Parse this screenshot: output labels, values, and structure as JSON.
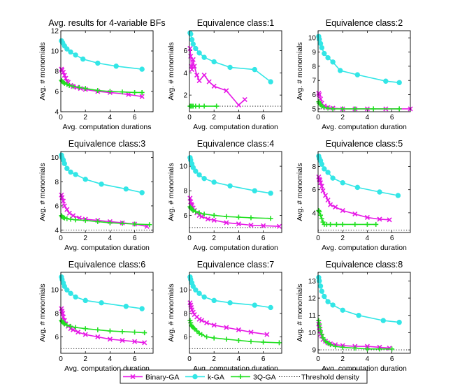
{
  "legend": {
    "entries": [
      {
        "label": "Binary-GA",
        "color": "#e619e6",
        "marker": "x"
      },
      {
        "label": "k-GA",
        "color": "#33e6e6",
        "marker": "o"
      },
      {
        "label": "3Q-GA",
        "color": "#22e022",
        "marker": "+"
      },
      {
        "label": "Threshold density",
        "color": "#000000",
        "marker": "dotted"
      }
    ]
  },
  "chart_data": [
    {
      "type": "line",
      "title": "Avg. results for 4-variable BFs",
      "xlabel": "Avg. computation durations",
      "ylabel": "Avg. # monomials",
      "xlim": [
        0,
        7.5
      ],
      "ylim": [
        4,
        12
      ],
      "xticks": [
        0,
        2,
        4,
        6
      ],
      "yticks": [
        4,
        6,
        8,
        10,
        12
      ],
      "threshold": null,
      "series": [
        {
          "name": "Binary-GA",
          "x": [
            0.05,
            0.1,
            0.2,
            0.3,
            0.4,
            0.5,
            0.6,
            0.8,
            1.0,
            1.3,
            1.6,
            2.0,
            3.0,
            4.0,
            5.5,
            6.6
          ],
          "y": [
            8.2,
            8.1,
            7.9,
            7.6,
            7.3,
            7.0,
            6.9,
            6.6,
            6.5,
            6.4,
            6.3,
            6.2,
            6.0,
            5.9,
            5.7,
            5.5
          ]
        },
        {
          "name": "k-GA",
          "x": [
            0.05,
            0.15,
            0.3,
            0.5,
            0.8,
            1.2,
            1.8,
            3.0,
            4.5,
            6.6
          ],
          "y": [
            11.0,
            10.8,
            10.5,
            10.2,
            9.9,
            9.6,
            9.2,
            8.8,
            8.5,
            8.2
          ]
        },
        {
          "name": "3Q-GA",
          "x": [
            0.05,
            0.1,
            0.2,
            0.3,
            0.5,
            0.7,
            1.0,
            1.5,
            2.0,
            3.0,
            4.0,
            5.0,
            6.0,
            6.6
          ],
          "y": [
            7.1,
            7.0,
            6.9,
            6.8,
            6.7,
            6.6,
            6.5,
            6.4,
            6.3,
            6.1,
            6.0,
            5.95,
            5.9,
            5.9
          ]
        }
      ]
    },
    {
      "type": "line",
      "title": "Equivalence class:1",
      "xlabel": "Avg. computation duration",
      "ylabel": "Avg. # monomials",
      "xlim": [
        0,
        7.5
      ],
      "ylim": [
        0.5,
        7.8
      ],
      "xticks": [
        0,
        2,
        4,
        6
      ],
      "yticks": [
        2,
        4,
        6
      ],
      "threshold": 1,
      "series": [
        {
          "name": "Binary-GA",
          "x": [
            0.05,
            0.1,
            0.15,
            0.2,
            0.3,
            0.4,
            0.6,
            0.8,
            1.2,
            1.6,
            2.0,
            3.0,
            4.0,
            4.5
          ],
          "y": [
            6.2,
            5.5,
            4.6,
            4.3,
            5.2,
            4.6,
            3.8,
            3.3,
            3.8,
            3.2,
            2.8,
            2.4,
            1.1,
            1.6
          ]
        },
        {
          "name": "k-GA",
          "x": [
            0.05,
            0.1,
            0.2,
            0.3,
            0.5,
            0.8,
            1.2,
            2.0,
            3.3,
            5.3,
            6.6
          ],
          "y": [
            7.6,
            7.5,
            7.0,
            6.6,
            6.2,
            5.8,
            5.4,
            5.0,
            4.5,
            4.3,
            3.2
          ]
        },
        {
          "name": "3Q-GA",
          "x": [
            0.05,
            0.1,
            0.2,
            0.3,
            0.5,
            0.8,
            1.2,
            2.2
          ],
          "y": [
            1.0,
            1.0,
            1.0,
            1.0,
            1.0,
            1.0,
            1.0,
            1.0
          ]
        }
      ]
    },
    {
      "type": "line",
      "title": "Equivalence class:2",
      "xlabel": "Avg. computation duration",
      "ylabel": "Avg. # monomials",
      "xlim": [
        0,
        7.5
      ],
      "ylim": [
        4.8,
        10.5
      ],
      "xticks": [
        0,
        2,
        4,
        6
      ],
      "yticks": [
        5,
        6,
        7,
        8,
        9,
        10
      ],
      "threshold": 5,
      "series": [
        {
          "name": "Binary-GA",
          "x": [
            0.05,
            0.1,
            0.2,
            0.3,
            0.5,
            0.8,
            1.2,
            2.0,
            3.0,
            4.0,
            5.5,
            7.5
          ],
          "y": [
            6.1,
            6.0,
            5.7,
            5.4,
            5.2,
            5.1,
            5.05,
            5.0,
            5.0,
            5.0,
            5.0,
            5.0
          ]
        },
        {
          "name": "k-GA",
          "x": [
            0.05,
            0.1,
            0.2,
            0.3,
            0.5,
            0.8,
            1.2,
            1.8,
            3.2,
            5.5,
            6.6
          ],
          "y": [
            10.1,
            9.9,
            9.6,
            9.3,
            8.9,
            8.6,
            8.3,
            7.7,
            7.4,
            6.95,
            6.85
          ]
        },
        {
          "name": "3Q-GA",
          "x": [
            0.05,
            0.1,
            0.2,
            0.3,
            0.5,
            0.8,
            1.2,
            2.0,
            3.0,
            4.5,
            6.6
          ],
          "y": [
            5.5,
            5.4,
            5.3,
            5.2,
            5.1,
            5.05,
            5.0,
            5.0,
            5.0,
            5.0,
            5.0
          ]
        }
      ]
    },
    {
      "type": "line",
      "title": "Equivalence class:3",
      "xlabel": "Avg. computation duration",
      "ylabel": "Avg. # monomials",
      "xlim": [
        0,
        7.5
      ],
      "ylim": [
        3.8,
        10.5
      ],
      "xticks": [
        0,
        2,
        4,
        6
      ],
      "yticks": [
        4,
        6,
        8,
        10
      ],
      "threshold": 4,
      "series": [
        {
          "name": "Binary-GA",
          "x": [
            0.05,
            0.1,
            0.2,
            0.3,
            0.5,
            0.7,
            1.0,
            1.5,
            2.0,
            3.0,
            4.0,
            5.0,
            6.0,
            7.0
          ],
          "y": [
            6.9,
            6.7,
            6.4,
            6.0,
            5.7,
            5.4,
            5.2,
            5.0,
            4.9,
            4.8,
            4.7,
            4.6,
            4.5,
            4.3
          ]
        },
        {
          "name": "k-GA",
          "x": [
            0.05,
            0.1,
            0.2,
            0.3,
            0.5,
            0.8,
            1.2,
            2.0,
            3.3,
            5.3,
            6.6
          ],
          "y": [
            10.2,
            10.0,
            9.8,
            9.5,
            9.1,
            8.8,
            8.6,
            8.2,
            7.8,
            7.4,
            7.1
          ]
        },
        {
          "name": "3Q-GA",
          "x": [
            0.05,
            0.1,
            0.2,
            0.3,
            0.5,
            0.8,
            1.2,
            2.0,
            3.0,
            4.0,
            5.0,
            6.0,
            7.2
          ],
          "y": [
            5.2,
            5.1,
            5.05,
            5.0,
            4.95,
            4.9,
            4.85,
            4.8,
            4.7,
            4.6,
            4.55,
            4.5,
            4.45
          ]
        }
      ]
    },
    {
      "type": "line",
      "title": "Equivalence class:4",
      "xlabel": "Avg. computation duration",
      "ylabel": "Avg. # monomials",
      "xlim": [
        0,
        7.5
      ],
      "ylim": [
        4.6,
        11.2
      ],
      "xticks": [
        0,
        2,
        4,
        6
      ],
      "yticks": [
        6,
        8,
        10
      ],
      "threshold": 5,
      "series": [
        {
          "name": "Binary-GA",
          "x": [
            0.05,
            0.1,
            0.15,
            0.2,
            0.3,
            0.4,
            0.6,
            0.8,
            1.0,
            1.5,
            2.0,
            3.0,
            4.0,
            5.0,
            6.0,
            7.3
          ],
          "y": [
            7.4,
            7.1,
            6.9,
            6.8,
            6.6,
            6.4,
            6.2,
            6.0,
            5.9,
            5.7,
            5.6,
            5.4,
            5.3,
            5.2,
            5.15,
            5.1
          ]
        },
        {
          "name": "k-GA",
          "x": [
            0.05,
            0.1,
            0.2,
            0.3,
            0.5,
            0.8,
            1.2,
            2.0,
            3.3,
            5.3,
            6.6
          ],
          "y": [
            10.7,
            10.5,
            10.2,
            9.9,
            9.6,
            9.3,
            9.0,
            8.7,
            8.4,
            8.0,
            7.8
          ]
        },
        {
          "name": "3Q-GA",
          "x": [
            0.05,
            0.1,
            0.2,
            0.3,
            0.5,
            0.8,
            1.2,
            2.0,
            3.0,
            4.0,
            5.0,
            6.6
          ],
          "y": [
            6.7,
            6.6,
            6.5,
            6.4,
            6.3,
            6.2,
            6.1,
            6.0,
            5.9,
            5.85,
            5.8,
            5.75
          ]
        }
      ]
    },
    {
      "type": "line",
      "title": "Equivalence class:5",
      "xlabel": "Avg. computation duration",
      "ylabel": "Avg. # monomials",
      "xlim": [
        0,
        7.5
      ],
      "ylim": [
        2.3,
        9.3
      ],
      "xticks": [
        0,
        2,
        4,
        6
      ],
      "yticks": [
        4,
        6,
        8
      ],
      "threshold": 2.5,
      "series": [
        {
          "name": "Binary-GA",
          "x": [
            0.05,
            0.1,
            0.15,
            0.2,
            0.3,
            0.4,
            0.6,
            0.8,
            1.0,
            1.4,
            2.0,
            3.0,
            4.0,
            5.0,
            5.8
          ],
          "y": [
            7.1,
            6.9,
            6.8,
            6.6,
            6.3,
            5.9,
            5.5,
            5.1,
            4.7,
            4.5,
            4.2,
            3.9,
            3.6,
            3.45,
            3.4
          ]
        },
        {
          "name": "k-GA",
          "x": [
            0.05,
            0.1,
            0.2,
            0.3,
            0.5,
            0.8,
            1.2,
            2.0,
            3.2,
            5.0,
            6.5
          ],
          "y": [
            8.9,
            8.7,
            8.5,
            8.2,
            7.8,
            7.5,
            7.0,
            6.6,
            6.2,
            5.8,
            5.5
          ]
        },
        {
          "name": "3Q-GA",
          "x": [
            0.05,
            0.1,
            0.2,
            0.3,
            0.4,
            0.5,
            0.7,
            1.0,
            1.5,
            2.0,
            3.0,
            4.0,
            4.7
          ],
          "y": [
            4.2,
            4.1,
            3.8,
            3.5,
            3.2,
            3.0,
            3.0,
            3.0,
            3.0,
            3.0,
            3.0,
            3.0,
            3.0
          ]
        }
      ]
    },
    {
      "type": "line",
      "title": "Equivalence class:6",
      "xlabel": "Avg. computation duration",
      "ylabel": "Avg. # monomials",
      "xlim": [
        0,
        7.5
      ],
      "ylim": [
        4.6,
        11.5
      ],
      "xticks": [
        0,
        2,
        4,
        6
      ],
      "yticks": [
        6,
        8,
        10
      ],
      "threshold": 5,
      "series": [
        {
          "name": "Binary-GA",
          "x": [
            0.05,
            0.1,
            0.15,
            0.2,
            0.3,
            0.4,
            0.6,
            0.8,
            1.0,
            1.4,
            2.0,
            3.0,
            4.0,
            5.0,
            6.0,
            6.8
          ],
          "y": [
            8.4,
            8.2,
            8.0,
            7.7,
            7.4,
            7.1,
            6.9,
            6.7,
            6.6,
            6.4,
            6.2,
            6.0,
            5.8,
            5.7,
            5.6,
            5.5
          ]
        },
        {
          "name": "k-GA",
          "x": [
            0.05,
            0.1,
            0.2,
            0.3,
            0.5,
            0.8,
            1.2,
            2.0,
            3.3,
            5.3,
            6.6
          ],
          "y": [
            11.1,
            10.9,
            10.6,
            10.3,
            10.0,
            9.7,
            9.4,
            9.1,
            8.9,
            8.6,
            8.4
          ]
        },
        {
          "name": "3Q-GA",
          "x": [
            0.05,
            0.1,
            0.2,
            0.3,
            0.5,
            0.8,
            1.2,
            2.0,
            3.0,
            4.0,
            5.0,
            6.0,
            6.8
          ],
          "y": [
            7.4,
            7.3,
            7.2,
            7.1,
            7.0,
            6.9,
            6.8,
            6.7,
            6.6,
            6.5,
            6.45,
            6.4,
            6.35
          ]
        }
      ]
    },
    {
      "type": "line",
      "title": "Equivalence class:7",
      "xlabel": "Avg. computation duration",
      "ylabel": "Avg. # monomials",
      "xlim": [
        0,
        7.5
      ],
      "ylim": [
        4.6,
        11.5
      ],
      "xticks": [
        0,
        2,
        4,
        6
      ],
      "yticks": [
        6,
        8,
        10
      ],
      "threshold": 5,
      "series": [
        {
          "name": "Binary-GA",
          "x": [
            0.05,
            0.1,
            0.15,
            0.2,
            0.3,
            0.4,
            0.6,
            0.8,
            1.0,
            1.4,
            2.0,
            3.0,
            4.0,
            5.0,
            6.3
          ],
          "y": [
            8.9,
            8.7,
            8.5,
            8.3,
            8.1,
            7.9,
            7.7,
            7.5,
            7.4,
            7.2,
            7.0,
            6.8,
            6.6,
            6.4,
            6.2
          ]
        },
        {
          "name": "k-GA",
          "x": [
            0.05,
            0.1,
            0.2,
            0.3,
            0.5,
            0.8,
            1.2,
            2.0,
            3.3,
            5.3,
            6.6
          ],
          "y": [
            11.1,
            10.9,
            10.6,
            10.3,
            10.0,
            9.7,
            9.4,
            9.1,
            8.9,
            8.7,
            8.5
          ]
        },
        {
          "name": "3Q-GA",
          "x": [
            0.05,
            0.1,
            0.15,
            0.2,
            0.3,
            0.4,
            0.6,
            0.8,
            1.0,
            1.4,
            2.0,
            3.0,
            4.0,
            5.0,
            6.0,
            7.3
          ],
          "y": [
            7.4,
            7.2,
            7.0,
            6.9,
            6.8,
            6.7,
            6.5,
            6.3,
            6.2,
            6.0,
            5.9,
            5.8,
            5.7,
            5.6,
            5.55,
            5.5
          ]
        }
      ]
    },
    {
      "type": "line",
      "title": "Equivalence class:8",
      "xlabel": "Avg. computation duration",
      "ylabel": "Avg. # monomials",
      "xlim": [
        0,
        7.5
      ],
      "ylim": [
        8.8,
        13.5
      ],
      "xticks": [
        0,
        2,
        4,
        6
      ],
      "yticks": [
        9,
        10,
        11,
        12,
        13
      ],
      "threshold": 9,
      "series": [
        {
          "name": "Binary-GA",
          "x": [
            0.05,
            0.1,
            0.15,
            0.2,
            0.3,
            0.4,
            0.6,
            0.8,
            1.0,
            1.4,
            2.0,
            3.0,
            4.0,
            5.0,
            5.8
          ],
          "y": [
            10.5,
            10.3,
            10.1,
            9.9,
            9.8,
            9.6,
            9.5,
            9.4,
            9.35,
            9.3,
            9.25,
            9.2,
            9.2,
            9.15,
            9.1
          ]
        },
        {
          "name": "k-GA",
          "x": [
            0.05,
            0.1,
            0.2,
            0.3,
            0.5,
            0.8,
            1.2,
            2.0,
            3.3,
            5.3,
            6.6
          ],
          "y": [
            13.2,
            13.0,
            12.7,
            12.4,
            12.1,
            11.8,
            11.6,
            11.3,
            11.0,
            10.7,
            10.6
          ]
        },
        {
          "name": "3Q-GA",
          "x": [
            0.05,
            0.1,
            0.15,
            0.2,
            0.3,
            0.4,
            0.6,
            0.8,
            1.0,
            1.4,
            2.0,
            3.0,
            4.0,
            5.0,
            6.0
          ],
          "y": [
            10.7,
            10.5,
            10.3,
            10.1,
            9.9,
            9.7,
            9.5,
            9.4,
            9.3,
            9.2,
            9.15,
            9.1,
            9.05,
            9.05,
            9.05
          ]
        }
      ]
    }
  ]
}
